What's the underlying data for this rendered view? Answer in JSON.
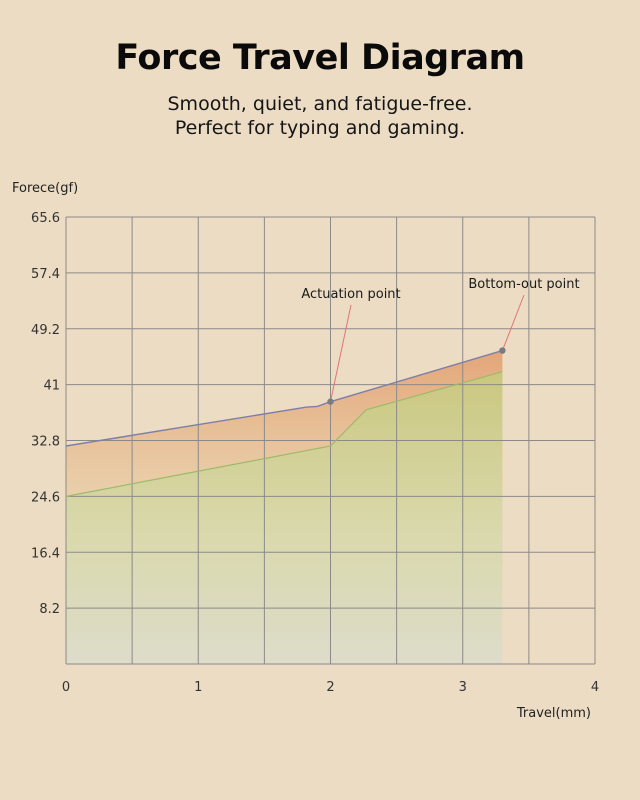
{
  "header": {
    "title": "Force Travel Diagram",
    "subtitle_line1": "Smooth, quiet, and fatigue-free.",
    "subtitle_line2": "Perfect for typing and gaming."
  },
  "chart_data": {
    "type": "area",
    "title": "Force Travel Diagram",
    "xlabel": "Travel(mm)",
    "ylabel": "Forece(gf)",
    "xlim": [
      0,
      4
    ],
    "ylim": [
      0,
      65.6
    ],
    "x_ticks": [
      0,
      1,
      2,
      3,
      4
    ],
    "y_ticks": [
      8.2,
      16.4,
      24.6,
      32.8,
      41,
      49.2,
      57.4,
      65.6
    ],
    "y_tick_labels": [
      "8.2",
      "16.4",
      "24.6",
      "32.8",
      "41",
      "49.2",
      "57.4",
      "65.6"
    ],
    "grid": true,
    "series": [
      {
        "role": "upper",
        "color": "#7e7fa6",
        "fill": "#e4a77a",
        "points": [
          [
            0,
            32.0
          ],
          [
            1.82,
            37.7
          ],
          [
            1.9,
            37.8
          ],
          [
            2.0,
            38.5
          ],
          [
            3.3,
            46.0
          ]
        ]
      },
      {
        "role": "lower",
        "color": "#9dba6a",
        "fill": "#c9d08a",
        "points": [
          [
            0,
            24.6
          ],
          [
            2.0,
            32.0
          ],
          [
            2.27,
            37.3
          ],
          [
            3.3,
            42.9
          ]
        ]
      }
    ],
    "annotations": [
      {
        "text": "Actuation point",
        "x": 2.0,
        "y": 38.5
      },
      {
        "text": "Bottom-out point",
        "x": 3.3,
        "y": 46.0
      }
    ],
    "colors": {
      "background": "#ecdcc3",
      "grid": "#8b8a88",
      "marker": "#7b7b82",
      "leader": "#e07575"
    }
  }
}
